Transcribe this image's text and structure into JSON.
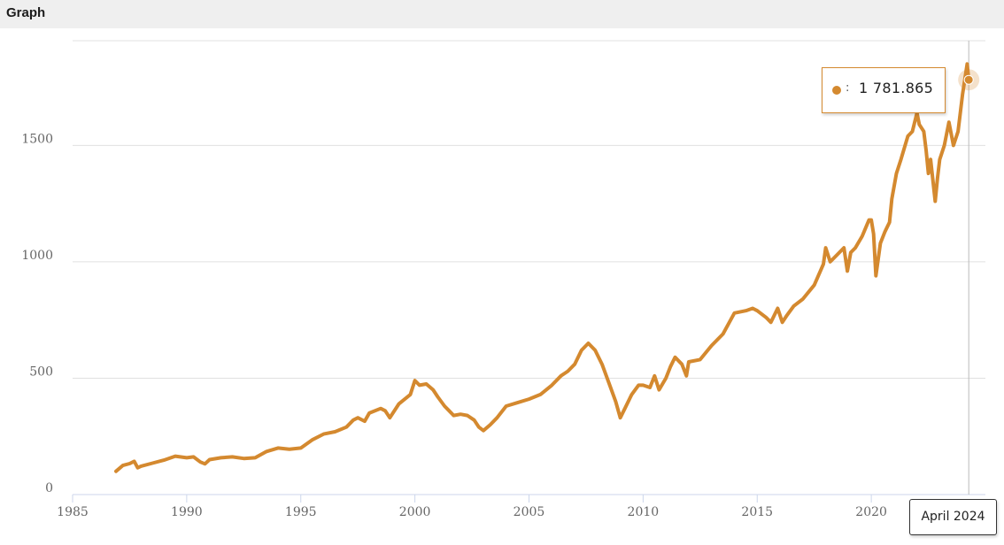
{
  "header": {
    "title": "Graph"
  },
  "colors": {
    "line": "#d4892f",
    "grid": "#e0e0e0",
    "axis": "#ccd6eb",
    "crosshair": "#bbbbbb",
    "header_bg": "#efefef"
  },
  "tooltip": {
    "value": "1 781.865",
    "separator": ":"
  },
  "crosshair_label": "April 2024",
  "chart_data": {
    "type": "line",
    "title": "",
    "xlabel": "",
    "ylabel": "",
    "xlim": [
      1985,
      2025
    ],
    "ylim": [
      0,
      1950
    ],
    "x_ticks": [
      1985,
      1990,
      1995,
      2000,
      2005,
      2010,
      2015,
      2020
    ],
    "y_ticks": [
      0,
      500,
      1000,
      1500
    ],
    "grid": "horizontal",
    "legend": "none",
    "series": [
      {
        "x": [
          1986.9,
          1987.2,
          1987.5,
          1987.7,
          1987.85,
          1988.0,
          1988.5,
          1989.0,
          1989.5,
          1990.0,
          1990.3,
          1990.6,
          1990.8,
          1991.0,
          1991.5,
          1992.0,
          1992.5,
          1993.0,
          1993.5,
          1994.0,
          1994.5,
          1995.0,
          1995.5,
          1996.0,
          1996.5,
          1997.0,
          1997.3,
          1997.5,
          1997.8,
          1998.0,
          1998.5,
          1998.7,
          1998.9,
          1999.3,
          1999.8,
          2000.0,
          2000.2,
          2000.5,
          2000.8,
          2001.0,
          2001.3,
          2001.5,
          2001.7,
          2002.0,
          2002.3,
          2002.6,
          2002.8,
          2003.0,
          2003.3,
          2003.6,
          2004.0,
          2004.5,
          2005.0,
          2005.5,
          2006.0,
          2006.4,
          2006.7,
          2007.0,
          2007.3,
          2007.6,
          2007.9,
          2008.2,
          2008.5,
          2008.8,
          2009.0,
          2009.2,
          2009.5,
          2009.8,
          2010.0,
          2010.3,
          2010.5,
          2010.7,
          2011.0,
          2011.2,
          2011.4,
          2011.7,
          2011.9,
          2012.0,
          2012.5,
          2013.0,
          2013.5,
          2014.0,
          2014.5,
          2014.8,
          2015.0,
          2015.4,
          2015.6,
          2015.9,
          2016.1,
          2016.3,
          2016.6,
          2017.0,
          2017.5,
          2017.9,
          2018.0,
          2018.2,
          2018.5,
          2018.8,
          2018.95,
          2019.1,
          2019.3,
          2019.6,
          2019.9,
          2020.0,
          2020.1,
          2020.2,
          2020.4,
          2020.6,
          2020.8,
          2020.9,
          2021.1,
          2021.3,
          2021.6,
          2021.8,
          2022.0,
          2022.1,
          2022.3,
          2022.4,
          2022.5,
          2022.6,
          2022.8,
          2022.9,
          2023.0,
          2023.2,
          2023.4,
          2023.6,
          2023.8,
          2024.0,
          2024.2,
          2024.27
        ],
        "y": [
          100,
          125,
          133,
          143,
          115,
          122,
          135,
          148,
          165,
          158,
          162,
          140,
          132,
          150,
          158,
          162,
          155,
          158,
          185,
          200,
          195,
          200,
          235,
          260,
          270,
          290,
          320,
          330,
          315,
          350,
          370,
          360,
          330,
          390,
          430,
          490,
          470,
          475,
          450,
          420,
          380,
          360,
          340,
          345,
          340,
          320,
          290,
          275,
          300,
          330,
          380,
          395,
          410,
          430,
          470,
          510,
          530,
          560,
          620,
          650,
          620,
          560,
          480,
          400,
          330,
          370,
          430,
          470,
          470,
          460,
          510,
          450,
          500,
          550,
          590,
          560,
          510,
          570,
          580,
          640,
          690,
          780,
          790,
          800,
          790,
          760,
          740,
          800,
          740,
          770,
          810,
          840,
          900,
          990,
          1060,
          1000,
          1030,
          1060,
          960,
          1040,
          1060,
          1110,
          1180,
          1180,
          1120,
          940,
          1080,
          1130,
          1170,
          1270,
          1380,
          1440,
          1540,
          1560,
          1640,
          1590,
          1560,
          1480,
          1380,
          1440,
          1260,
          1360,
          1440,
          1500,
          1600,
          1500,
          1560,
          1720,
          1850,
          1782
        ]
      }
    ]
  }
}
